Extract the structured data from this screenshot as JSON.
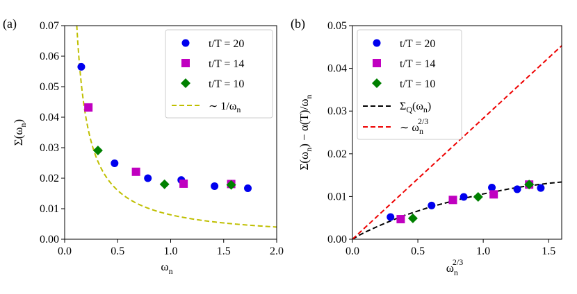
{
  "chart_data": [
    {
      "type": "scatter",
      "panel_label": "(a)",
      "xlabel": "ω_n",
      "ylabel": "Σ(ω_n)",
      "xlim": [
        0.0,
        2.0
      ],
      "ylim": [
        0.0,
        0.07
      ],
      "x_ticks": [
        "0.0",
        "0.5",
        "1.0",
        "1.5",
        "2.0"
      ],
      "y_ticks": [
        "0.00",
        "0.01",
        "0.02",
        "0.03",
        "0.04",
        "0.05",
        "0.06",
        "0.07"
      ],
      "grid": false,
      "legend_position": "top-right",
      "series": [
        {
          "name": "t/T = 20",
          "marker": "circle",
          "color": "#0000ee",
          "x": [
            0.157,
            0.471,
            0.785,
            1.1,
            1.414,
            1.728
          ],
          "y": [
            0.0565,
            0.0249,
            0.02,
            0.0194,
            0.0174,
            0.0167
          ]
        },
        {
          "name": "t/T = 14",
          "marker": "square",
          "color": "#c000c0",
          "x": [
            0.224,
            0.673,
            1.122,
            1.571
          ],
          "y": [
            0.0432,
            0.0221,
            0.0182,
            0.0181
          ]
        },
        {
          "name": "t/T = 10",
          "marker": "diamond",
          "color": "#008000",
          "x": [
            0.314,
            0.942,
            1.571
          ],
          "y": [
            0.0291,
            0.018,
            0.0178
          ]
        },
        {
          "name": "∼ 1/ω_n",
          "style": "dashed",
          "color": "#bfbf00",
          "function": "0.008/x",
          "x_range": [
            0.114,
            2.0
          ]
        }
      ]
    },
    {
      "type": "scatter",
      "panel_label": "(b)",
      "xlabel": "ω_n^(2/3)",
      "ylabel": "Σ(ω_n) − α(T)/ω_n",
      "xlim": [
        0.0,
        1.6
      ],
      "ylim": [
        0.0,
        0.05
      ],
      "x_ticks": [
        "0.0",
        "0.5",
        "1.0",
        "1.5"
      ],
      "y_ticks": [
        "0.00",
        "0.01",
        "0.02",
        "0.03",
        "0.04",
        "0.05"
      ],
      "grid": false,
      "legend_position": "top-left",
      "series": [
        {
          "name": "t/T = 20",
          "marker": "circle",
          "color": "#0000ee",
          "x": [
            0.291,
            0.605,
            0.851,
            1.066,
            1.26,
            1.44
          ],
          "y": [
            0.0052,
            0.0079,
            0.0099,
            0.0121,
            0.0117,
            0.012
          ]
        },
        {
          "name": "t/T = 14",
          "marker": "square",
          "color": "#c000c0",
          "x": [
            0.369,
            0.768,
            1.08,
            1.351
          ],
          "y": [
            0.0047,
            0.0092,
            0.0105,
            0.0128
          ]
        },
        {
          "name": "t/T = 10",
          "marker": "diamond",
          "color": "#008000",
          "x": [
            0.462,
            0.961,
            1.351
          ],
          "y": [
            0.0049,
            0.0099,
            0.0128
          ]
        },
        {
          "name": "Σ_Q(ω_n)",
          "style": "dashed",
          "color": "#000000",
          "x": [
            0.0,
            0.05,
            0.1,
            0.2,
            0.3,
            0.4,
            0.5,
            0.6,
            0.7,
            0.8,
            0.9,
            1.0,
            1.1,
            1.2,
            1.3,
            1.4,
            1.5,
            1.6
          ],
          "y": [
            0.0,
            0.0009,
            0.0017,
            0.0031,
            0.0044,
            0.0056,
            0.0066,
            0.0076,
            0.0084,
            0.0092,
            0.0099,
            0.0106,
            0.0112,
            0.0118,
            0.0123,
            0.0127,
            0.0131,
            0.0134
          ]
        },
        {
          "name": "∼ ω_n^(2/3)",
          "style": "dashed",
          "color": "#ee0000",
          "x": [
            0.0,
            1.6
          ],
          "y": [
            0.0,
            0.0453
          ]
        }
      ]
    }
  ],
  "legend_a": {
    "l1": "t/T  = 20",
    "l2": "t/T  = 14",
    "l3": "t/T  = 10",
    "l4_prefix": "∼  1/ω",
    "l4_sub": "n"
  },
  "legend_b": {
    "l1": "t/T  = 20",
    "l2": "t/T  = 14",
    "l3": "t/T  = 10",
    "l4_main": "Σ",
    "l4_sub1": "Q",
    "l4_mid": "(ω",
    "l4_sub2": "n",
    "l4_end": ")",
    "l5_prefix": "∼  ω",
    "l5_sub": "n",
    "l5_sup": "2/3"
  },
  "labels_a": {
    "panel": "(a)",
    "x_main": "ω",
    "x_sub": "n",
    "y_main": "Σ(ω",
    "y_sub": "n",
    "y_end": ")"
  },
  "labels_b": {
    "panel": "(b)",
    "x_main": "ω",
    "x_sub": "n",
    "x_sup": "2/3",
    "y_main": "Σ(ω",
    "y_sub": "n",
    "y_mid": ") − α(T)/ω",
    "y_sub2": "n"
  }
}
